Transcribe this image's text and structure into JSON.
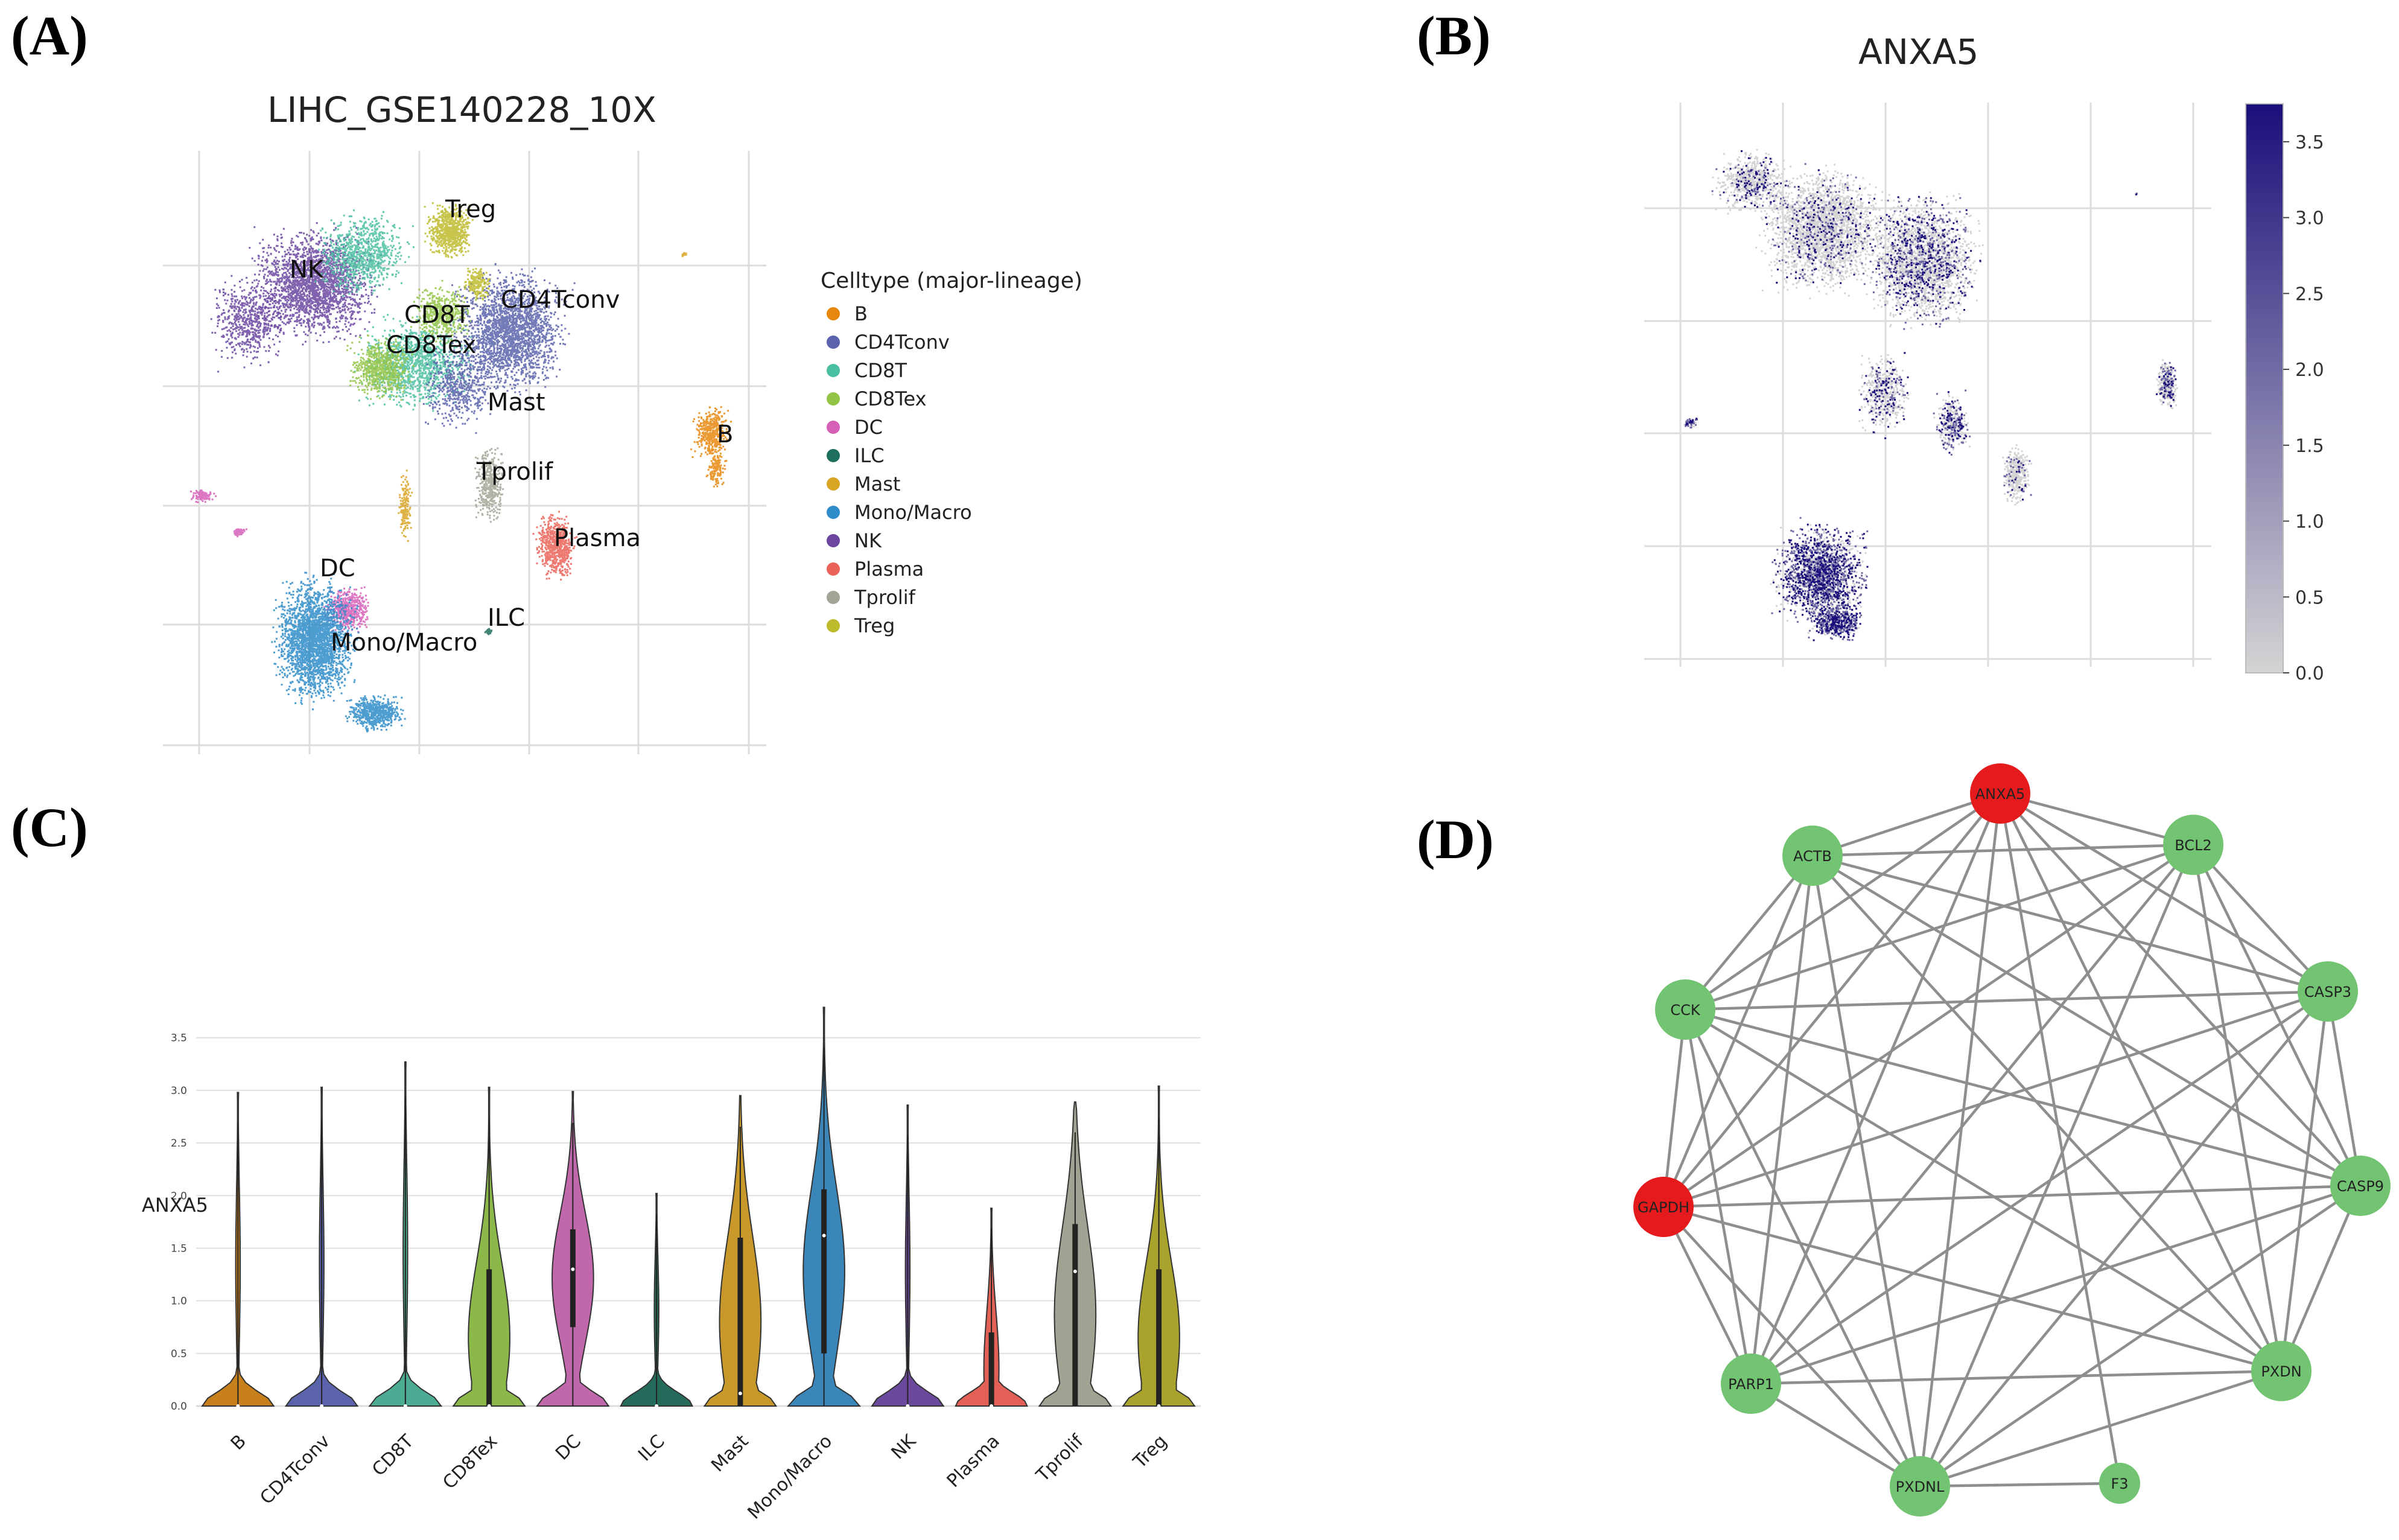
{
  "panels": {
    "a": "(A)",
    "b": "(B)",
    "c": "(C)",
    "d": "(D)"
  },
  "chart_data": [
    {
      "type": "scatter",
      "panel": "(A)",
      "title": "LIHC_GSE140228_10X",
      "legend_title": "Celltype (major-lineage)",
      "legend_position": "right",
      "grid": true,
      "categories": [
        {
          "name": "B",
          "color": "#e8870f"
        },
        {
          "name": "CD4Tconv",
          "color": "#5a63ac"
        },
        {
          "name": "CD8T",
          "color": "#4bbfa2"
        },
        {
          "name": "CD8Tex",
          "color": "#93c446"
        },
        {
          "name": "DC",
          "color": "#d660b8"
        },
        {
          "name": "ILC",
          "color": "#1f6f5e"
        },
        {
          "name": "Mast",
          "color": "#d9a524"
        },
        {
          "name": "Mono/Macro",
          "color": "#2f8cc9"
        },
        {
          "name": "NK",
          "color": "#6a46a0"
        },
        {
          "name": "Plasma",
          "color": "#ea6158"
        },
        {
          "name": "Tprolif",
          "color": "#a2a495"
        },
        {
          "name": "Treg",
          "color": "#bdbb2c"
        }
      ]
    },
    {
      "type": "scatter",
      "panel": "(B)",
      "title": "ANXA5",
      "colorbar_ticks": [
        "3.5",
        "3.0",
        "2.5",
        "2.0",
        "1.5",
        "1.0",
        "0.5",
        "0.0"
      ],
      "colorbar_range": [
        0,
        3.75
      ],
      "color_low": "#d4d4d4",
      "color_high": "#1a0f7a",
      "grid": true
    },
    {
      "type": "violin",
      "panel": "(C)",
      "ylabel": "ANXA5",
      "ylim": [
        0,
        3.9
      ],
      "yticks": [
        "0.0",
        "0.5",
        "1.0",
        "1.5",
        "2.0",
        "2.5",
        "3.0",
        "3.5"
      ],
      "categories": [
        "B",
        "CD4Tconv",
        "CD8T",
        "CD8Tex",
        "DC",
        "ILC",
        "Mast",
        "Mono/Macro",
        "NK",
        "Plasma",
        "Tprolif",
        "Treg"
      ],
      "colors": [
        "#c8801d",
        "#5a63ac",
        "#4bab93",
        "#8cb84a",
        "#c168ad",
        "#246b5b",
        "#c8982a",
        "#3a86b8",
        "#6b4a9e",
        "#e36057",
        "#9fa392",
        "#a9a22d"
      ],
      "max": [
        2.98,
        3.03,
        3.27,
        3.03,
        2.99,
        2.02,
        2.95,
        3.79,
        2.86,
        1.88,
        2.89,
        3.04
      ],
      "median": [
        0.0,
        0.0,
        0.0,
        0.0,
        1.3,
        0.0,
        0.12,
        1.62,
        0.0,
        0.0,
        1.28,
        0.0
      ],
      "q1": [
        0.0,
        0.0,
        0.0,
        0.0,
        0.75,
        0.0,
        0.0,
        0.5,
        0.0,
        0.0,
        0.0,
        0.0
      ],
      "q3": [
        0.0,
        0.0,
        0.0,
        1.3,
        1.68,
        0.0,
        1.6,
        2.06,
        0.0,
        0.7,
        1.73,
        1.3
      ]
    },
    {
      "type": "network",
      "panel": "(D)",
      "nodes": [
        {
          "name": "ANXA5",
          "color": "#e51a1d"
        },
        {
          "name": "BCL2",
          "color": "#72c472"
        },
        {
          "name": "CASP3",
          "color": "#72c472"
        },
        {
          "name": "CASP9",
          "color": "#72c472"
        },
        {
          "name": "PXDN",
          "color": "#72c472"
        },
        {
          "name": "F3",
          "color": "#72c472"
        },
        {
          "name": "PXDNL",
          "color": "#72c472"
        },
        {
          "name": "PARP1",
          "color": "#72c472"
        },
        {
          "name": "GAPDH",
          "color": "#e51a1d"
        },
        {
          "name": "CCK",
          "color": "#72c472"
        },
        {
          "name": "ACTB",
          "color": "#72c472"
        }
      ],
      "edges": [
        [
          "ANXA5",
          "BCL2"
        ],
        [
          "ANXA5",
          "CASP3"
        ],
        [
          "ANXA5",
          "CASP9"
        ],
        [
          "ANXA5",
          "PXDN"
        ],
        [
          "ANXA5",
          "F3"
        ],
        [
          "ANXA5",
          "PXDNL"
        ],
        [
          "ANXA5",
          "PARP1"
        ],
        [
          "ANXA5",
          "GAPDH"
        ],
        [
          "ANXA5",
          "CCK"
        ],
        [
          "ANXA5",
          "ACTB"
        ],
        [
          "BCL2",
          "ACTB"
        ],
        [
          "BCL2",
          "CCK"
        ],
        [
          "BCL2",
          "GAPDH"
        ],
        [
          "BCL2",
          "PARP1"
        ],
        [
          "BCL2",
          "PXDNL"
        ],
        [
          "BCL2",
          "CASP3"
        ],
        [
          "BCL2",
          "CASP9"
        ],
        [
          "BCL2",
          "PXDN"
        ],
        [
          "CASP3",
          "ACTB"
        ],
        [
          "CASP3",
          "CCK"
        ],
        [
          "CASP3",
          "GAPDH"
        ],
        [
          "CASP3",
          "PARP1"
        ],
        [
          "CASP3",
          "PXDNL"
        ],
        [
          "CASP3",
          "CASP9"
        ],
        [
          "CASP3",
          "PXDN"
        ],
        [
          "CASP9",
          "ACTB"
        ],
        [
          "CASP9",
          "CCK"
        ],
        [
          "CASP9",
          "GAPDH"
        ],
        [
          "CASP9",
          "PARP1"
        ],
        [
          "CASP9",
          "PXDNL"
        ],
        [
          "CASP9",
          "PXDN"
        ],
        [
          "PXDN",
          "ACTB"
        ],
        [
          "PXDN",
          "CCK"
        ],
        [
          "PXDN",
          "GAPDH"
        ],
        [
          "PXDN",
          "PARP1"
        ],
        [
          "PXDN",
          "PXDNL"
        ],
        [
          "F3",
          "PXDNL"
        ],
        [
          "PXDNL",
          "ACTB"
        ],
        [
          "PXDNL",
          "CCK"
        ],
        [
          "PXDNL",
          "GAPDH"
        ],
        [
          "PXDNL",
          "PARP1"
        ],
        [
          "PARP1",
          "ACTB"
        ],
        [
          "PARP1",
          "CCK"
        ],
        [
          "PARP1",
          "GAPDH"
        ],
        [
          "GAPDH",
          "ACTB"
        ],
        [
          "GAPDH",
          "CCK"
        ],
        [
          "CCK",
          "ACTB"
        ]
      ]
    }
  ]
}
